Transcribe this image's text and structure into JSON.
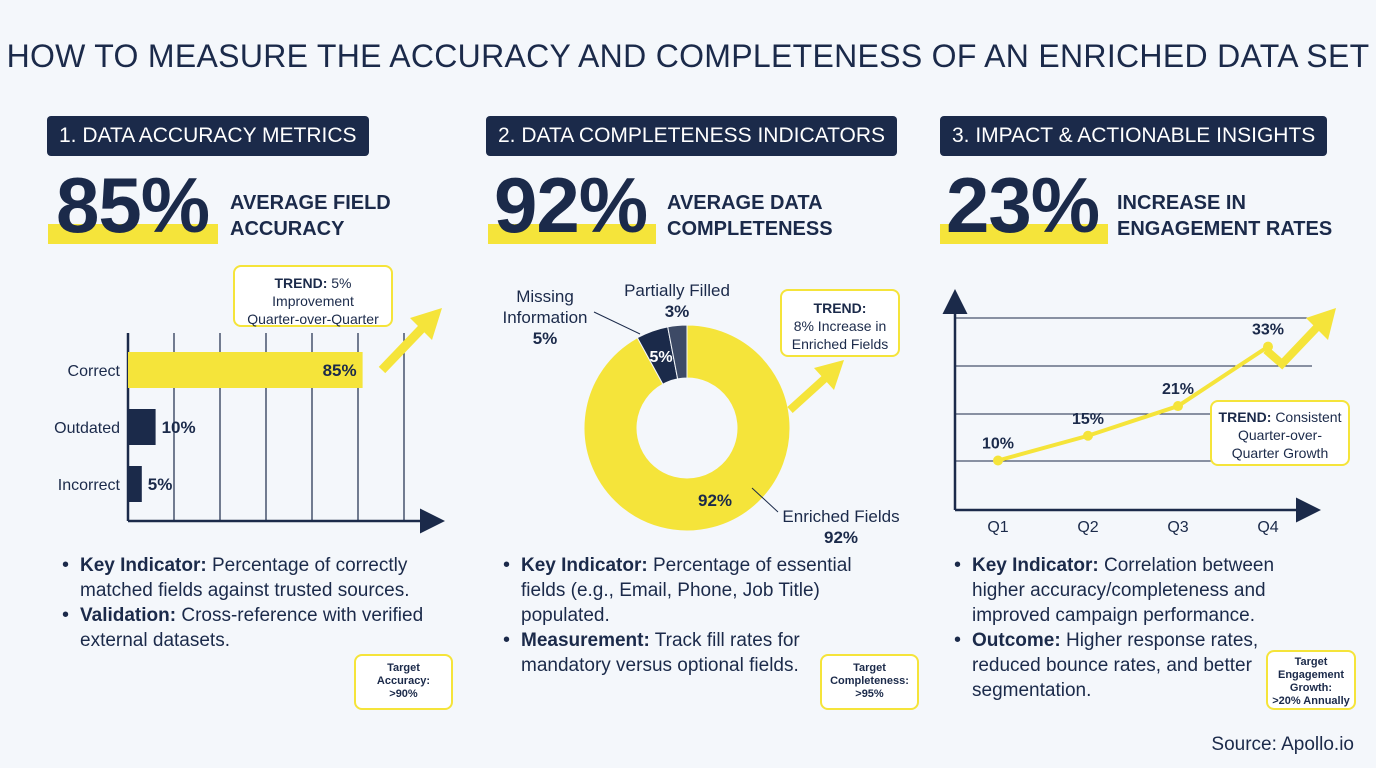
{
  "title": "HOW TO MEASURE THE ACCURACY AND COMPLETENESS OF AN ENRICHED DATA SET",
  "colors": {
    "navy": "#1b2a4a",
    "yellow": "#f5e43a",
    "gray": "#3d4a66"
  },
  "sections": [
    {
      "heading": "1. DATA ACCURACY METRICS",
      "big_value": "85%",
      "big_label_1": "AVERAGE FIELD",
      "big_label_2": "ACCURACY",
      "trend_label": "TREND:",
      "trend_value": "5%",
      "trend_line_2": "Improvement",
      "trend_line_3": "Quarter-over-Quarter",
      "bullets": [
        {
          "label": "Key Indicator:",
          "text": "Percentage of correctly matched fields against trusted sources."
        },
        {
          "label": "Validation:",
          "text": "Cross-reference with verified external datasets."
        }
      ],
      "target_1": "Target",
      "target_2": "Accuracy:",
      "target_3": ">90%"
    },
    {
      "heading": "2. DATA COMPLETENESS INDICATORS",
      "big_value": "92%",
      "big_label_1": "AVERAGE DATA",
      "big_label_2": "COMPLETENESS",
      "trend_label": "TREND:",
      "trend_line_2": "8% Increase in",
      "trend_line_3": "Enriched Fields",
      "bullets": [
        {
          "label": "Key Indicator:",
          "text": "Percentage of essential fields (e.g., Email, Phone, Job Title) populated."
        },
        {
          "label": "Measurement:",
          "text": "Track fill rates for mandatory versus optional fields."
        }
      ],
      "target_1": "Target",
      "target_2": "Completeness:",
      "target_3": ">95%"
    },
    {
      "heading": "3. IMPACT & ACTIONABLE INSIGHTS",
      "big_value": "23%",
      "big_label_1": "INCREASE IN",
      "big_label_2": "ENGAGEMENT RATES",
      "trend_label": "TREND:",
      "trend_value": "Consistent",
      "trend_line_2": "Quarter-over-",
      "trend_line_3": "Quarter Growth",
      "bullets": [
        {
          "label": "Key Indicator:",
          "text": "Correlation between higher accuracy/completeness and improved campaign performance."
        },
        {
          "label": "Outcome:",
          "text": "Higher response rates, reduced bounce rates, and better segmentation."
        }
      ],
      "target_1": "Target",
      "target_2": "Engagement",
      "target_3": "Growth:",
      "target_4": ">20% Annually"
    }
  ],
  "chart_data": [
    {
      "type": "bar",
      "orientation": "horizontal",
      "categories": [
        "Correct",
        "Outdated",
        "Incorrect"
      ],
      "values": [
        85,
        10,
        5
      ],
      "value_labels": [
        "85%",
        "10%",
        "5%"
      ],
      "xlim": [
        0,
        100
      ],
      "grid": true
    },
    {
      "type": "pie",
      "donut": true,
      "slices": [
        {
          "name": "Enriched Fields",
          "value": 92,
          "label": "92%",
          "color": "#f5e43a"
        },
        {
          "name": "Missing Information",
          "value": 5,
          "label": "5%",
          "color": "#1b2a4a"
        },
        {
          "name": "Partially Filled",
          "value": 3,
          "label": "3%",
          "color": "#3d4a66"
        }
      ],
      "callouts": {
        "enriched_name": "Enriched Fields",
        "enriched_value": "92%",
        "missing_name_1": "Missing",
        "missing_name_2": "Information",
        "missing_value": "5%",
        "partial_name": "Partially Filled",
        "partial_value": "3%"
      }
    },
    {
      "type": "line",
      "categories": [
        "Q1",
        "Q2",
        "Q3",
        "Q4"
      ],
      "values": [
        10,
        15,
        21,
        33
      ],
      "value_labels": [
        "10%",
        "15%",
        "21%",
        "33%"
      ],
      "ylim": [
        0,
        40
      ],
      "grid": true
    }
  ],
  "source": "Source: Apollo.io"
}
